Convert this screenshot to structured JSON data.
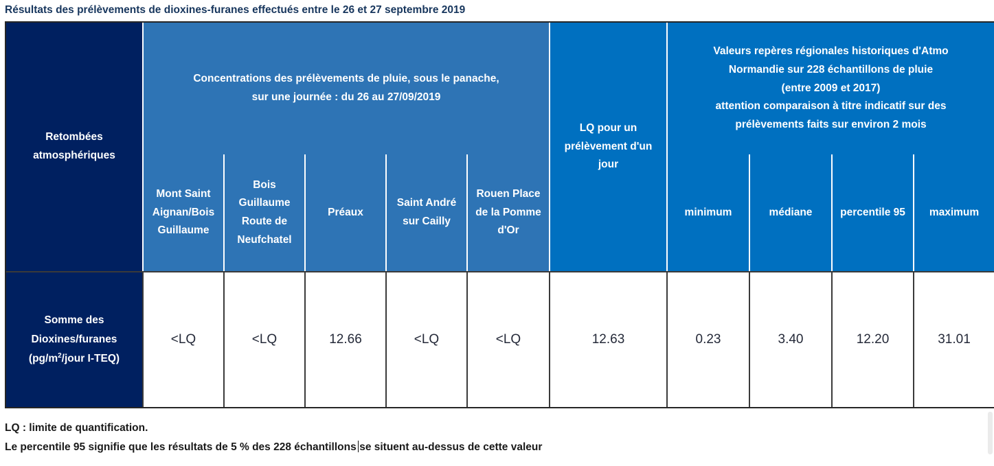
{
  "title": "Résultats des prélèvements de dioxines-furanes effectués entre le 26 et 27 septembre 2019",
  "colors": {
    "navy": "#002060",
    "medium_blue": "#2E74B5",
    "bright_blue": "#0070C0",
    "header_text": "#FFFFFF",
    "grid_line_dark": "#3A3A3A",
    "divider_white": "#FFFFFF",
    "title_text": "#17365D",
    "value_text": "#242938"
  },
  "table": {
    "row_header": "Retombées\natmosphériques",
    "concentrations_group": {
      "label": "Concentrations des prélèvements  de pluie, sous le panache,\nsur une journée : du 26 au 27/09/2019",
      "columns": [
        "Mont Saint\nAignan/Bois\nGuillaume",
        "Bois\nGuillaume\nRoute de\nNeufchatel",
        "Préaux",
        "Saint André\nsur Cailly",
        "Rouen Place\nde la Pomme\nd'Or"
      ]
    },
    "lq_column": "LQ pour un\nprélèvement d'un\njour",
    "reference_group": {
      "label": "Valeurs repères régionales historiques d'Atmo\nNormandie sur 228 échantillons de pluie\n(entre 2009 et 2017)\nattention comparaison à titre indicatif sur des\nprélèvements faits sur environ 2 mois",
      "columns": [
        "minimum",
        "médiane",
        "percentile 95",
        "maximum"
      ]
    },
    "data_row": {
      "label_line1": "Somme des",
      "label_line2": "Dioxines/furanes",
      "unit_pre": "(pg/m",
      "unit_sup": "2",
      "unit_post": "/jour I-TEQ)",
      "values": [
        "<LQ",
        "<LQ",
        "12.66",
        "<LQ",
        "<LQ",
        "12.63",
        "0.23",
        "3.40",
        "12.20",
        "31.01"
      ]
    }
  },
  "notes": {
    "note1": "LQ : limite de quantification.",
    "note2_part1": "Le percentile 95 signifie que les résultats de 5 % des 228 échantillons",
    "note2_part2": "se situent au-dessus de cette valeur"
  }
}
